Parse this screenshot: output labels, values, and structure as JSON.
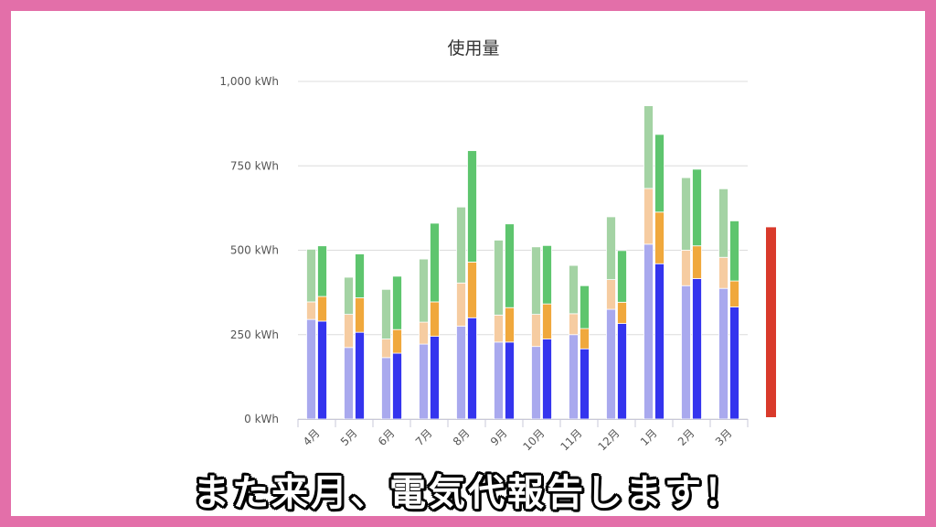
{
  "caption": "また来月、電気代報告します！",
  "colors": {
    "frame": "#e36fa9",
    "prev_base": "#a9a9ee",
    "prev_mid": "#f6cca1",
    "prev_top": "#a4d3a4",
    "curr_base": "#3434ee",
    "curr_mid": "#f0a83c",
    "curr_top": "#5ec56e",
    "indicator": "#d93a2b"
  },
  "chart_data": {
    "type": "bar",
    "stacked": true,
    "title": "使用量",
    "yticks": [
      "0 kWh",
      "250 kWh",
      "500 kWh",
      "750 kWh",
      "1,000 kWh"
    ],
    "ylim": [
      0,
      1000
    ],
    "grid": true,
    "categories": [
      "4月",
      "5月",
      "6月",
      "7月",
      "8月",
      "9月",
      "10月",
      "11月",
      "12月",
      "1月",
      "2月",
      "3月"
    ],
    "groups": [
      {
        "series": [
          {
            "values": [
              295,
              212,
              182,
              222,
              275,
              228,
              215,
              250,
              325,
              518,
              395,
              387
            ]
          },
          {
            "values": [
              52,
              98,
              55,
              65,
              128,
              80,
              95,
              62,
              88,
              165,
              105,
              92
            ]
          },
          {
            "values": [
              156,
              110,
              147,
              187,
              225,
              222,
              200,
              143,
              186,
              245,
              215,
              203
            ]
          }
        ]
      },
      {
        "series": [
          {
            "values": [
              290,
              257,
              195,
              245,
              300,
              228,
              237,
              208,
              283,
              460,
              416,
              332
            ]
          },
          {
            "values": [
              73,
              102,
              70,
              102,
              165,
              102,
              104,
              60,
              63,
              153,
              97,
              77
            ]
          },
          {
            "values": [
              150,
              130,
              158,
              233,
              330,
              248,
              173,
              127,
              153,
              230,
              227,
              178
            ]
          }
        ]
      }
    ],
    "indicator_range": [
      0,
      568
    ]
  }
}
